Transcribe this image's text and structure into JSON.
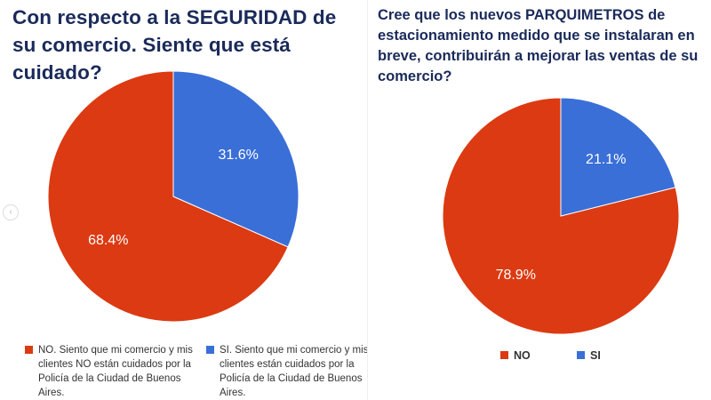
{
  "colors": {
    "no": "#dc3a12",
    "si": "#3a6fd8",
    "title": "#1a2a5a"
  },
  "chart_data": [
    {
      "type": "pie",
      "title": "Con respecto a la SEGURIDAD de su comercio. Siente que está cuidado?",
      "categories": [
        "NO. Siento que mi comercio y mis clientes NO están cuidados por la Policía de la Ciudad de Buenos Aires.",
        "SI. Siento que mi comercio y mis clientes están cuidados por la Policía de la Ciudad de Buenos Aires."
      ],
      "values": [
        68.4,
        31.6
      ],
      "data_labels": [
        "68.4%",
        "31.6%"
      ],
      "legend": "bottom"
    },
    {
      "type": "pie",
      "title": "Cree que los nuevos PARQUIMETROS de estacionamiento medido que se instalaran en breve, contribuirán a mejorar las ventas de su comercio?",
      "categories": [
        "NO",
        "SI"
      ],
      "values": [
        78.9,
        21.1
      ],
      "data_labels": [
        "78.9%",
        "21.1%"
      ],
      "legend": "bottom"
    }
  ]
}
